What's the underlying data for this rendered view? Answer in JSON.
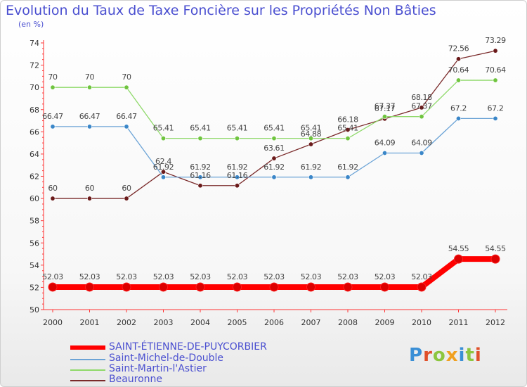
{
  "chart_data": {
    "type": "line",
    "title": "Evolution du Taux de Taxe Foncière sur les Propriétés Non Bâties",
    "ylabel": "(en %)",
    "xlabel": "",
    "ylim": [
      50,
      74
    ],
    "yticks": [
      50,
      52,
      54,
      56,
      58,
      60,
      62,
      64,
      66,
      68,
      70,
      72,
      74
    ],
    "grid": false,
    "categories": [
      "2000",
      "2001",
      "2002",
      "2003",
      "2004",
      "2005",
      "2006",
      "2007",
      "2008",
      "2009",
      "2010",
      "2011",
      "2012"
    ],
    "series": [
      {
        "name": "SAINT-ÉTIENNE-DE-PUYCORBIER",
        "color": "#ff0000",
        "dot_color": "#dd0000",
        "values": [
          52.03,
          52.03,
          52.03,
          52.03,
          52.03,
          52.03,
          52.03,
          52.03,
          52.03,
          52.03,
          52.03,
          54.55,
          54.55
        ],
        "labels": [
          "52.03",
          "52.03",
          "52.03",
          "52.03",
          "52.03",
          "52.03",
          "52.03",
          "52.03",
          "52.03",
          "52.03",
          "52.03",
          "54.55",
          "54.55"
        ]
      },
      {
        "name": "Saint-Michel-de-Double",
        "color": "#6ba3d6",
        "dot_color": "#3a86c8",
        "values": [
          66.47,
          66.47,
          66.47,
          61.92,
          61.92,
          61.92,
          61.92,
          61.92,
          61.92,
          64.09,
          64.09,
          67.2,
          67.2
        ],
        "labels": [
          "66.47",
          "66.47",
          "66.47",
          "61.92",
          "61.92",
          "61.92",
          "61.92",
          "61.92",
          "61.92",
          "64.09",
          "64.09",
          "67.2",
          "67.2"
        ]
      },
      {
        "name": "Saint-Martin-l'Astier",
        "color": "#8fd96a",
        "dot_color": "#6fc43f",
        "values": [
          70,
          70,
          70,
          65.41,
          65.41,
          65.41,
          65.41,
          65.41,
          65.41,
          67.37,
          67.37,
          70.64,
          70.64
        ],
        "labels": [
          "70",
          "70",
          "70",
          "65.41",
          "65.41",
          "65.41",
          "65.41",
          "65.41",
          "65.41",
          "67.37",
          "67.37",
          "70.64",
          "70.64"
        ]
      },
      {
        "name": "Beauronne",
        "color": "#7a2a2a",
        "dot_color": "#6a1a1a",
        "values": [
          60,
          60,
          60,
          62.4,
          61.16,
          61.16,
          63.61,
          64.88,
          66.18,
          67.17,
          68.18,
          72.56,
          73.29
        ],
        "labels": [
          "60",
          "60",
          "60",
          "62.4",
          "61.16",
          "61.16",
          "63.61",
          "64.88",
          "66.18",
          "67.17",
          "68.18",
          "72.56",
          "73.29"
        ]
      }
    ]
  },
  "legend": {
    "items": [
      "SAINT-ÉTIENNE-DE-PUYCORBIER",
      "Saint-Michel-de-Double",
      "Saint-Martin-l'Astier",
      "Beauronne"
    ]
  },
  "logo": {
    "text": "Proxiti"
  }
}
